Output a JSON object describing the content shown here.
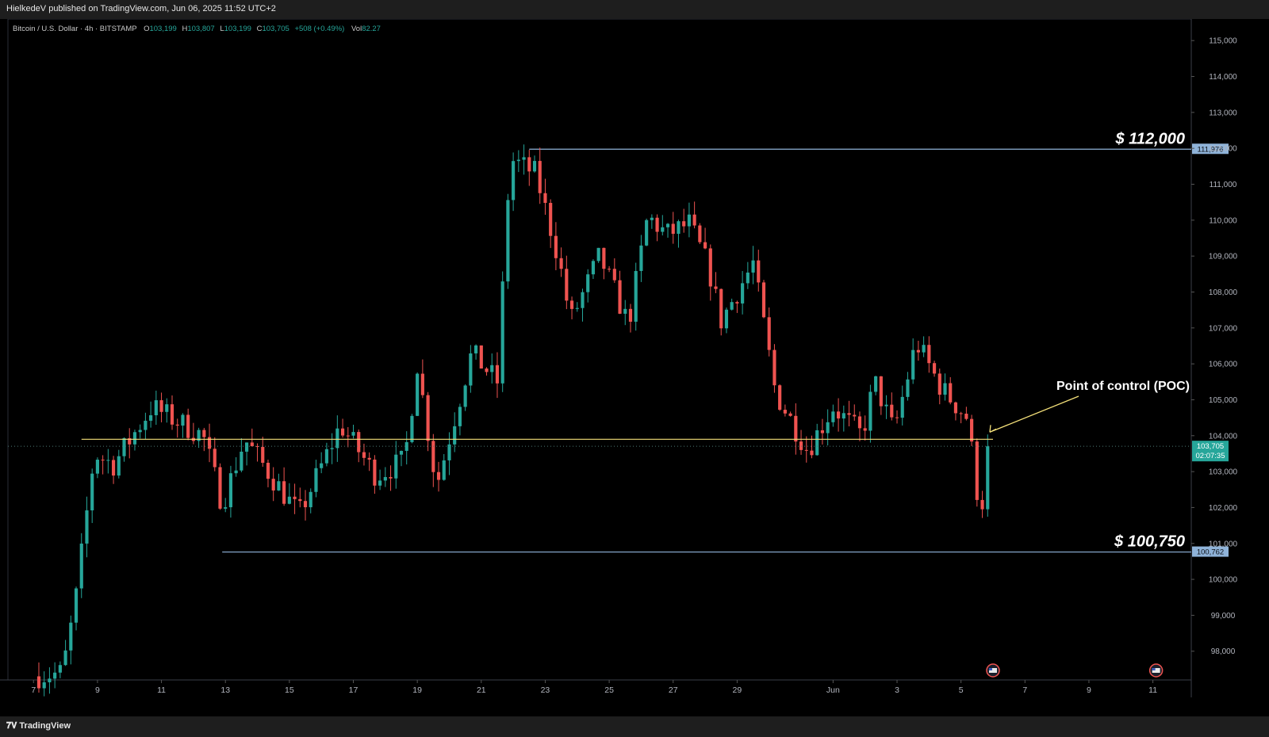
{
  "header": {
    "published": "HielkedeV published on TradingView.com, Jun 06, 2025 11:52 UTC+2"
  },
  "legend": {
    "symbol": "Bitcoin / U.S. Dollar · 4h · BITSTAMP",
    "o_label": "O",
    "o_value": "103,199",
    "h_label": "H",
    "h_value": "103,807",
    "l_label": "L",
    "l_value": "103,199",
    "c_label": "C",
    "c_value": "103,705",
    "change": "+508 (+0.49%)",
    "vol_label": "Vol",
    "vol_value": "82.27"
  },
  "footer": {
    "brand": "TradingView"
  },
  "chart_data": {
    "type": "candlestick",
    "ylim": [
      97200,
      115600
    ],
    "y_ticks": [
      98000,
      99000,
      100000,
      101000,
      102000,
      103000,
      104000,
      105000,
      106000,
      107000,
      108000,
      109000,
      110000,
      111000,
      112000,
      113000,
      114000,
      115000
    ],
    "y_tick_labels": [
      "98,000",
      "99,000",
      "100,000",
      "101,000",
      "102,000",
      "103,000",
      "104,000",
      "105,000",
      "106,000",
      "107,000",
      "108,000",
      "109,000",
      "110,000",
      "111,000",
      "112,000",
      "113,000",
      "114,000",
      "115,000"
    ],
    "x_range_days": [
      6.2,
      43.2
    ],
    "x_ticks": [
      {
        "day": 7,
        "label": "7"
      },
      {
        "day": 9,
        "label": "9"
      },
      {
        "day": 11,
        "label": "11"
      },
      {
        "day": 13,
        "label": "13"
      },
      {
        "day": 15,
        "label": "15"
      },
      {
        "day": 17,
        "label": "17"
      },
      {
        "day": 19,
        "label": "19"
      },
      {
        "day": 21,
        "label": "21"
      },
      {
        "day": 23,
        "label": "23"
      },
      {
        "day": 25,
        "label": "25"
      },
      {
        "day": 27,
        "label": "27"
      },
      {
        "day": 29,
        "label": "29"
      },
      {
        "day": 32,
        "label": "Jun"
      },
      {
        "day": 34,
        "label": "3"
      },
      {
        "day": 36,
        "label": "5"
      },
      {
        "day": 38,
        "label": "7"
      },
      {
        "day": 40,
        "label": "9"
      },
      {
        "day": 42,
        "label": "11"
      }
    ],
    "colors": {
      "up": "#26a69a",
      "down": "#ef5350",
      "level": "#8fb3d9",
      "poc": "#f5e17a",
      "price": "#26a69a"
    },
    "anchors": [
      [
        7.0,
        97300
      ],
      [
        7.9,
        97400
      ],
      [
        8.3,
        99300
      ],
      [
        8.9,
        103500
      ],
      [
        9.5,
        103200
      ],
      [
        10.7,
        104800
      ],
      [
        12.3,
        104000
      ],
      [
        12.9,
        102100
      ],
      [
        13.6,
        103900
      ],
      [
        15.3,
        101800
      ],
      [
        16.6,
        104300
      ],
      [
        17.7,
        102900
      ],
      [
        18.6,
        103300
      ],
      [
        19.0,
        106000
      ],
      [
        19.6,
        102600
      ],
      [
        20.7,
        106300
      ],
      [
        21.5,
        105500
      ],
      [
        21.9,
        111700
      ],
      [
        22.7,
        111300
      ],
      [
        23.4,
        109000
      ],
      [
        23.8,
        107200
      ],
      [
        24.7,
        109000
      ],
      [
        25.6,
        107100
      ],
      [
        26.2,
        110100
      ],
      [
        26.8,
        109600
      ],
      [
        27.5,
        109900
      ],
      [
        28.1,
        108700
      ],
      [
        28.5,
        107200
      ],
      [
        29.5,
        108800
      ],
      [
        30.2,
        105200
      ],
      [
        31.2,
        103600
      ],
      [
        32.0,
        104800
      ],
      [
        32.9,
        104000
      ],
      [
        33.3,
        105500
      ],
      [
        33.9,
        104100
      ],
      [
        34.6,
        106600
      ],
      [
        35.4,
        105300
      ],
      [
        36.2,
        104500
      ],
      [
        36.6,
        101800
      ],
      [
        36.95,
        103700
      ]
    ],
    "last_price": 103705,
    "last_price_label": "103,705",
    "countdown_label": "02:07:35",
    "levels": [
      {
        "value": 111976,
        "label": "$ 112,000",
        "axis_label": "111,976",
        "from_day": 22.5
      },
      {
        "value": 100762,
        "label": "$ 100,750",
        "axis_label": "100,762",
        "from_day": 12.9
      }
    ],
    "poc": {
      "value": 103900,
      "from_day": 8.5,
      "to_day": 37.0
    },
    "annotation": {
      "text": "Point of control (POC)"
    }
  }
}
